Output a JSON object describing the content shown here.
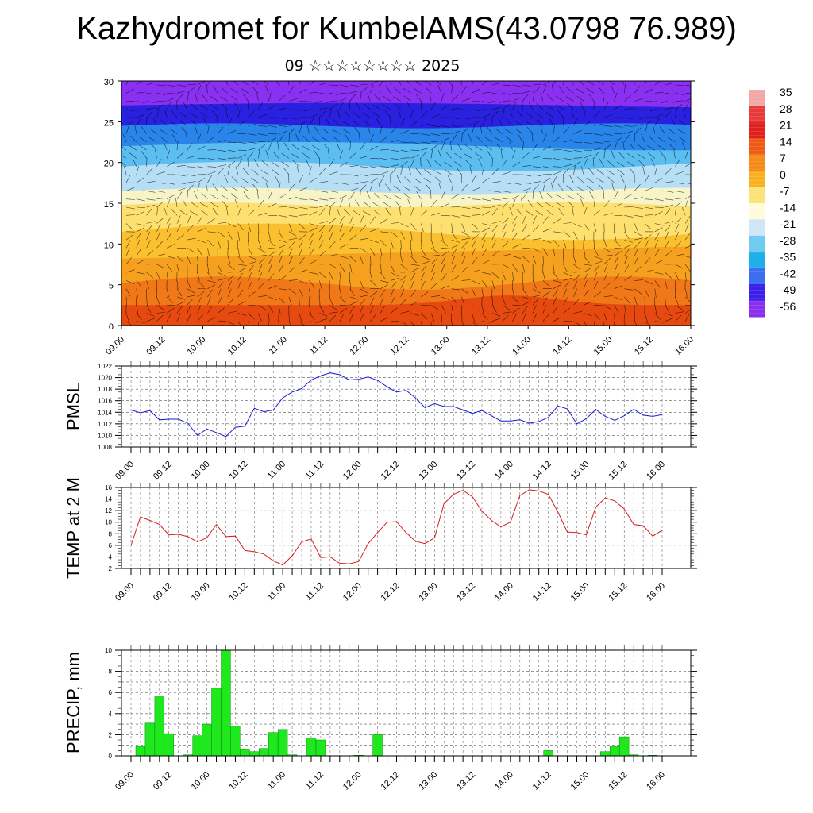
{
  "title": "Kazhydromet for KumbelAMS(43.0798 76.989)",
  "subtitle": "09 ☆☆☆☆☆☆☆☆ 2025",
  "x_tick_labels": [
    "09.00",
    "09.12",
    "10.00",
    "10.12",
    "11.00",
    "11.12",
    "12.00",
    "12.12",
    "13.00",
    "13.12",
    "14.00",
    "14.12",
    "15.00",
    "15.12",
    "16.00"
  ],
  "colorbar": {
    "labels": [
      "35",
      "28",
      "21",
      "14",
      "7",
      "0",
      "-7",
      "-14",
      "-21",
      "-28",
      "-35",
      "-42",
      "-49",
      "-56"
    ],
    "colors_top_to_bottom": [
      "#f2a6a6",
      "#e83a3a",
      "#e01f1f",
      "#ee5a14",
      "#f58a18",
      "#f9b020",
      "#fde276",
      "#fdfbd8",
      "#cfe6f6",
      "#6fcbf0",
      "#1fb0ea",
      "#3a6ff2",
      "#3a1fe8",
      "#8a2ef0"
    ]
  },
  "chart_data": [
    {
      "type": "heatmap",
      "title": "",
      "ylabel": "",
      "ylim": [
        0,
        30
      ],
      "y_ticks": [
        0,
        5,
        10,
        15,
        20,
        25,
        30
      ],
      "x_range_days": [
        "09.00",
        "16.00"
      ],
      "layers_bottom_to_top": [
        "#e64a10",
        "#f07818",
        "#f6a020",
        "#fbc030",
        "#fde070",
        "#f7f4c8",
        "#b6def4",
        "#5bbdf0",
        "#2a85ea",
        "#2a20e0",
        "#8a30f0"
      ],
      "overlay": "wind barbs"
    },
    {
      "type": "line",
      "ylabel": "PMSL",
      "ylim": [
        1008,
        1022
      ],
      "y_ticks": [
        1008,
        1010,
        1012,
        1014,
        1016,
        1018,
        1020,
        1022
      ],
      "color": "#1a1ad8",
      "series": [
        {
          "values": [
            1014.4,
            1013.9,
            1014.3,
            1012.7,
            1012.8,
            1012.8,
            1012.1,
            1010.0,
            1011.1,
            1010.5,
            1009.8,
            1011.4,
            1011.6,
            1014.7,
            1014.1,
            1014.4,
            1016.5,
            1017.5,
            1018.1,
            1019.6,
            1020.3,
            1020.8,
            1020.5,
            1019.6,
            1019.7,
            1020.1,
            1019.5,
            1018.4,
            1017.5,
            1017.8,
            1016.5,
            1014.8,
            1015.5,
            1015.0,
            1015.0,
            1014.4,
            1013.8,
            1014.3,
            1013.4,
            1012.5,
            1012.5,
            1012.7,
            1012.1,
            1012.4,
            1013.1,
            1015.1,
            1014.6,
            1012.0,
            1012.9,
            1014.5,
            1013.3,
            1012.6,
            1013.4,
            1014.5,
            1013.5,
            1013.3,
            1013.6
          ]
        }
      ]
    },
    {
      "type": "line",
      "ylabel": "TEMP at 2 M",
      "ylim": [
        2,
        16
      ],
      "y_ticks": [
        2,
        4,
        6,
        8,
        10,
        12,
        14,
        16
      ],
      "color": "#d81a1a",
      "series": [
        {
          "values": [
            6.0,
            10.9,
            10.3,
            9.6,
            7.8,
            7.9,
            7.5,
            6.6,
            7.3,
            9.6,
            7.5,
            7.6,
            5.1,
            4.9,
            4.5,
            3.3,
            2.6,
            4.2,
            6.6,
            7.1,
            3.9,
            4.0,
            2.9,
            2.8,
            3.2,
            6.3,
            8.2,
            10.0,
            10.1,
            8.2,
            6.7,
            6.3,
            7.3,
            13.2,
            14.8,
            15.5,
            14.4,
            11.9,
            10.3,
            9.2,
            10.0,
            14.6,
            15.6,
            15.4,
            14.8,
            11.8,
            8.3,
            8.2,
            7.8,
            12.6,
            14.2,
            13.7,
            12.3,
            9.6,
            9.4,
            7.6,
            8.6
          ]
        }
      ]
    },
    {
      "type": "bar",
      "ylabel": "PRECIP, mm",
      "ylim": [
        0,
        10
      ],
      "y_ticks": [
        0,
        2,
        4,
        6,
        8,
        10
      ],
      "color": "#1fe81f",
      "values": [
        0,
        0.9,
        3.1,
        5.6,
        2.1,
        0,
        0.1,
        1.9,
        3.0,
        6.4,
        10.0,
        2.8,
        0.6,
        0.4,
        0.7,
        2.2,
        2.5,
        0.1,
        0,
        1.7,
        1.5,
        0,
        0,
        0,
        0.05,
        0,
        2.0,
        0,
        0,
        0,
        0,
        0,
        0,
        0,
        0,
        0,
        0,
        0,
        0,
        0,
        0,
        0,
        0,
        0,
        0.5,
        0,
        0,
        0,
        0,
        0,
        0.4,
        0.9,
        1.8,
        0.1,
        0,
        0.05,
        0
      ]
    }
  ]
}
